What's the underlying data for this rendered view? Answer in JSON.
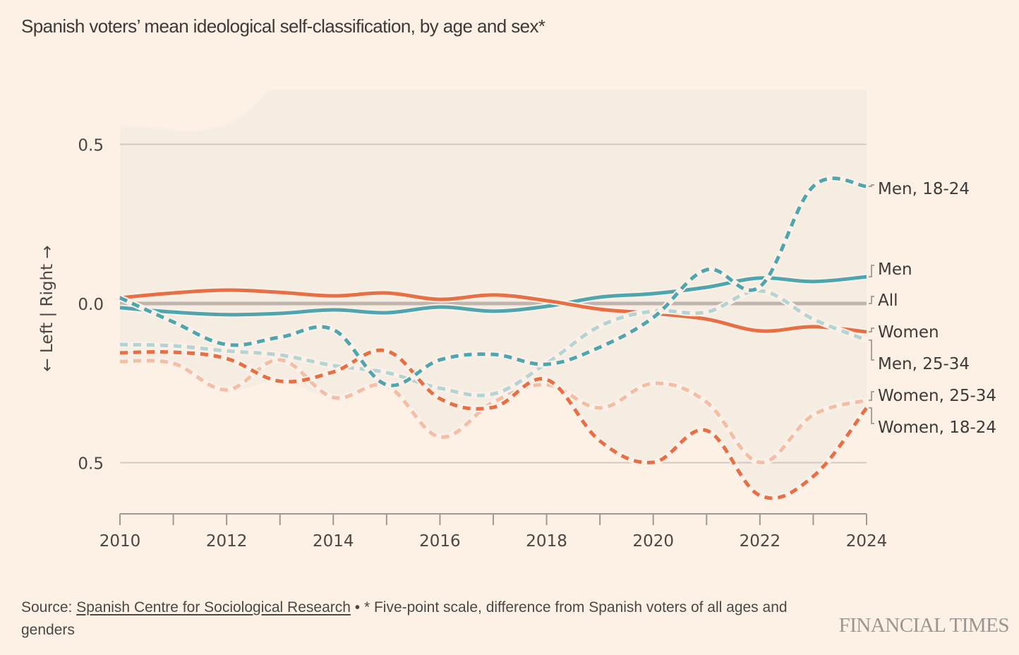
{
  "title": "Spanish voters’ mean ideological self-classification, by age and sex*",
  "source": {
    "prefix": "Source: ",
    "link_text": "Spanish Centre for Sociological Research",
    "note": " • * Five-point scale, difference from Spanish voters of all ages and genders"
  },
  "logo": "FINANCIAL TIMES",
  "colors": {
    "background": "#fdf1e6",
    "plot_band": "#f5ece2",
    "men": "#4fa5ae",
    "women": "#e86e43",
    "men_25_34": "#b3d4d2",
    "women_25_34": "#f2bea4",
    "all": "#c0b5ae"
  },
  "chart_data": {
    "type": "line",
    "title": "Spanish voters’ mean ideological self-classification, by age and sex*",
    "xlabel": "",
    "ylabel": "← Left | Right →",
    "x": [
      2010,
      2011,
      2012,
      2013,
      2014,
      2015,
      2016,
      2017,
      2018,
      2019,
      2020,
      2021,
      2022,
      2023,
      2024
    ],
    "xlim": [
      2010,
      2024
    ],
    "ylim": [
      -0.66,
      0.68
    ],
    "x_ticks": [
      2010,
      2011,
      2012,
      2013,
      2014,
      2015,
      2016,
      2017,
      2018,
      2019,
      2020,
      2021,
      2022,
      2023,
      2024
    ],
    "x_tick_labels": [
      {
        "value": 2010,
        "label": "2010"
      },
      {
        "value": 2012,
        "label": "2012"
      },
      {
        "value": 2014,
        "label": "2014"
      },
      {
        "value": 2016,
        "label": "2016"
      },
      {
        "value": 2018,
        "label": "2018"
      },
      {
        "value": 2020,
        "label": "2020"
      },
      {
        "value": 2022,
        "label": "2022"
      },
      {
        "value": 2024,
        "label": "2024"
      }
    ],
    "y_ticks": [
      {
        "value": 0.5,
        "label": "0.5"
      },
      {
        "value": 0.0,
        "label": "0.0"
      },
      {
        "value": -0.5,
        "label": "0.5"
      }
    ],
    "grid": true,
    "legend": "direct labels at right",
    "series": [
      {
        "name": "All",
        "label": "All",
        "style": "solid",
        "color": "#c0b5ae",
        "values": [
          0,
          0,
          0,
          0,
          0,
          0,
          0,
          0,
          0,
          0,
          0,
          0,
          0,
          0,
          0
        ]
      },
      {
        "name": "Men",
        "label": "Men",
        "style": "solid",
        "color": "#4fa5ae",
        "values": [
          -0.013,
          -0.027,
          -0.035,
          -0.031,
          -0.02,
          -0.029,
          -0.011,
          -0.024,
          -0.009,
          0.02,
          0.031,
          0.051,
          0.08,
          0.069,
          0.084
        ]
      },
      {
        "name": "Women",
        "label": "Women",
        "style": "solid",
        "color": "#e86e43",
        "values": [
          0.018,
          0.033,
          0.042,
          0.035,
          0.024,
          0.033,
          0.013,
          0.027,
          0.009,
          -0.018,
          -0.031,
          -0.049,
          -0.086,
          -0.073,
          -0.089
        ]
      },
      {
        "name": "Men, 25-34",
        "label": "Men, 25-34",
        "style": "dashed",
        "color": "#b3d4d2",
        "values": [
          -0.129,
          -0.133,
          -0.149,
          -0.162,
          -0.195,
          -0.217,
          -0.266,
          -0.284,
          -0.188,
          -0.071,
          -0.024,
          -0.027,
          0.04,
          -0.049,
          -0.115
        ]
      },
      {
        "name": "Women, 25-34",
        "label": "Women, 25-34",
        "style": "dashed",
        "color": "#f2bea4",
        "values": [
          -0.182,
          -0.188,
          -0.271,
          -0.177,
          -0.295,
          -0.259,
          -0.419,
          -0.31,
          -0.255,
          -0.328,
          -0.251,
          -0.31,
          -0.499,
          -0.35,
          -0.304
        ]
      },
      {
        "name": "Women, 18-24",
        "label": "Women, 18-24",
        "style": "dashed",
        "color": "#e86e43",
        "values": [
          -0.155,
          -0.153,
          -0.173,
          -0.244,
          -0.215,
          -0.149,
          -0.299,
          -0.326,
          -0.239,
          -0.432,
          -0.499,
          -0.399,
          -0.603,
          -0.543,
          -0.328
        ]
      },
      {
        "name": "Men, 18-24",
        "label": "Men, 18-24",
        "style": "dashed",
        "color": "#4fa5ae",
        "values": [
          0.018,
          -0.058,
          -0.129,
          -0.106,
          -0.082,
          -0.255,
          -0.177,
          -0.16,
          -0.191,
          -0.137,
          -0.044,
          0.106,
          0.053,
          0.368,
          0.368
        ]
      }
    ],
    "labels_order": [
      "Men, 18-24",
      "Men",
      "All",
      "Women",
      "Men, 25-34",
      "Women, 25-34",
      "Women, 18-24"
    ]
  }
}
